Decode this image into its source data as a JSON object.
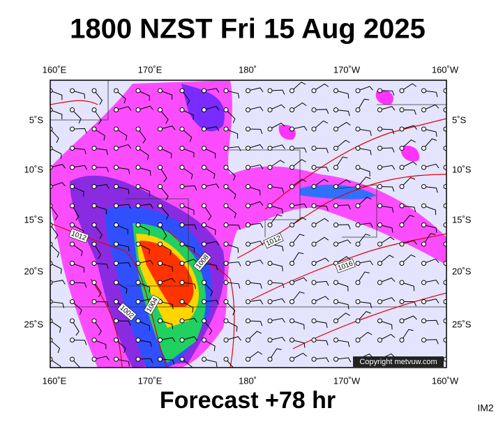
{
  "header": {
    "title": "1800 NZST Fri 15 Aug 2025"
  },
  "map": {
    "lon_labels": [
      "160˚E",
      "170˚E",
      "180˚",
      "170˚W",
      "160˚W"
    ],
    "lat_labels": [
      "5˚S",
      "10˚S",
      "15˚S",
      "20˚S",
      "25˚S"
    ],
    "isobar_labels": [
      "1012",
      "1008",
      "1004",
      "1002",
      "1012",
      "1016"
    ],
    "copyright": "Copyright metvuw.com"
  },
  "footer": {
    "caption": "Forecast +78 hr",
    "code": "IM2"
  }
}
